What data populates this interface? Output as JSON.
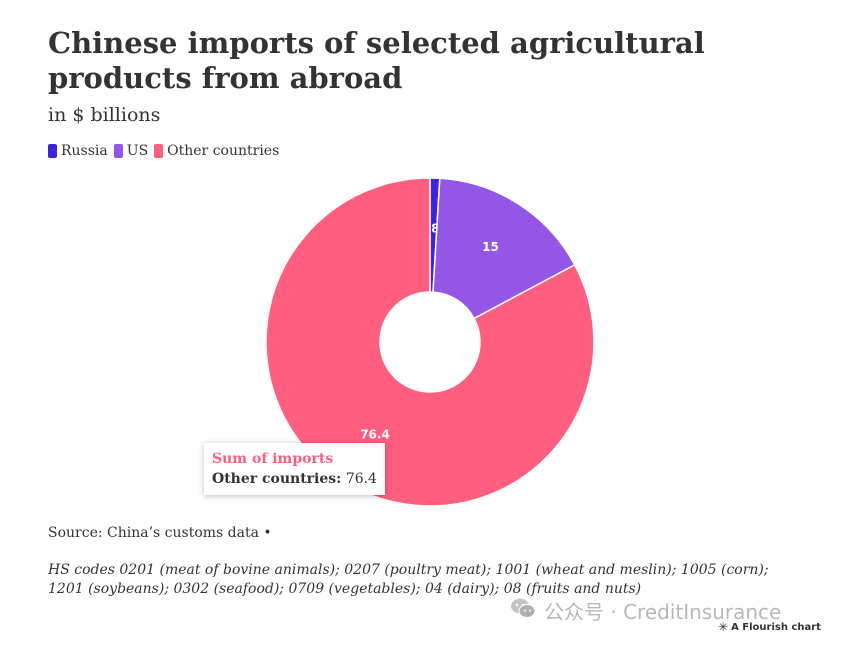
{
  "title": "Chinese imports of selected agricultural products from abroad",
  "subtitle": "in $ billions",
  "legend": [
    {
      "label": "Russia",
      "color": "#3b24e0"
    },
    {
      "label": "US",
      "color": "#9356e6"
    },
    {
      "label": "Other countries",
      "color": "#ff5e7e"
    }
  ],
  "chart_data": {
    "type": "pie",
    "style": "donut",
    "categories": [
      "Russia",
      "US",
      "Other countries"
    ],
    "values": [
      0.88,
      15,
      76.4
    ],
    "value_labels": [
      "0.88",
      "15",
      "76.4"
    ],
    "colors": [
      "#3b24e0",
      "#9356e6",
      "#ff5e7e"
    ],
    "title": "Chinese imports of selected agricultural products from abroad",
    "subtitle": "in $ billions",
    "legend_position": "top-left"
  },
  "tooltip": {
    "title": "Sum of imports",
    "title_color": "#ff5e7e",
    "label": "Other countries:",
    "value": "76.4"
  },
  "source": "Source: China’s customs data •",
  "note": "HS codes 0201 (meat of bovine animals); 0207 (poultry meat); 1001 (wheat and meslin); 1005 (corn); 1201 (soybeans); 0302 (seafood); 0709 (vegetables); 04 (dairy); 08 (fruits and nuts)",
  "watermark": "公众号 · CreditInsurance",
  "flourish_credit": "A Flourish chart"
}
